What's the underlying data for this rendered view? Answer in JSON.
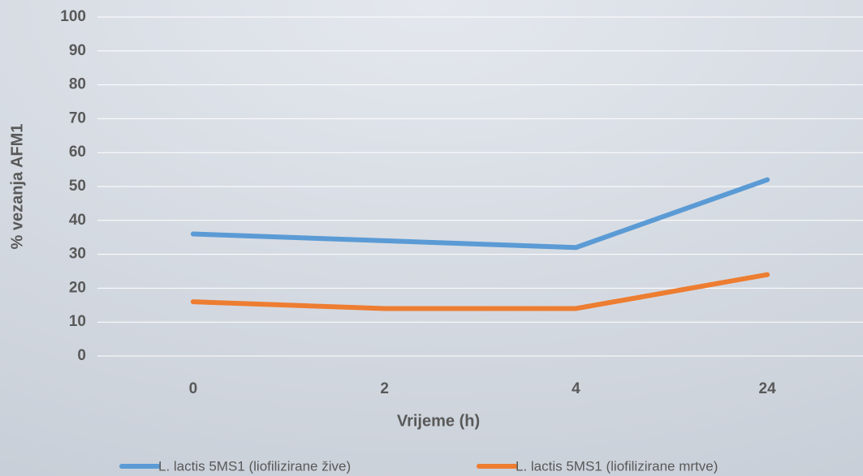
{
  "chart_data": {
    "type": "line",
    "categories": [
      "0",
      "2",
      "4",
      "24"
    ],
    "series": [
      {
        "name": "L. lactis 5MS1 (liofilizirane žive)",
        "color": "#5b9bd5",
        "values": [
          36,
          34,
          32,
          52
        ]
      },
      {
        "name": "L. lactis 5MS1 (liofilizirane mrtve)",
        "color": "#ed7d31",
        "values": [
          16,
          14,
          14,
          24
        ]
      }
    ],
    "x_label": "Vrijeme (h)",
    "y_label": "% vezanja AFM1",
    "ylim": [
      0,
      100
    ],
    "yticks": [
      0,
      10,
      20,
      30,
      40,
      50,
      60,
      70,
      80,
      90,
      100
    ],
    "grid": true,
    "legend": "bottom"
  }
}
